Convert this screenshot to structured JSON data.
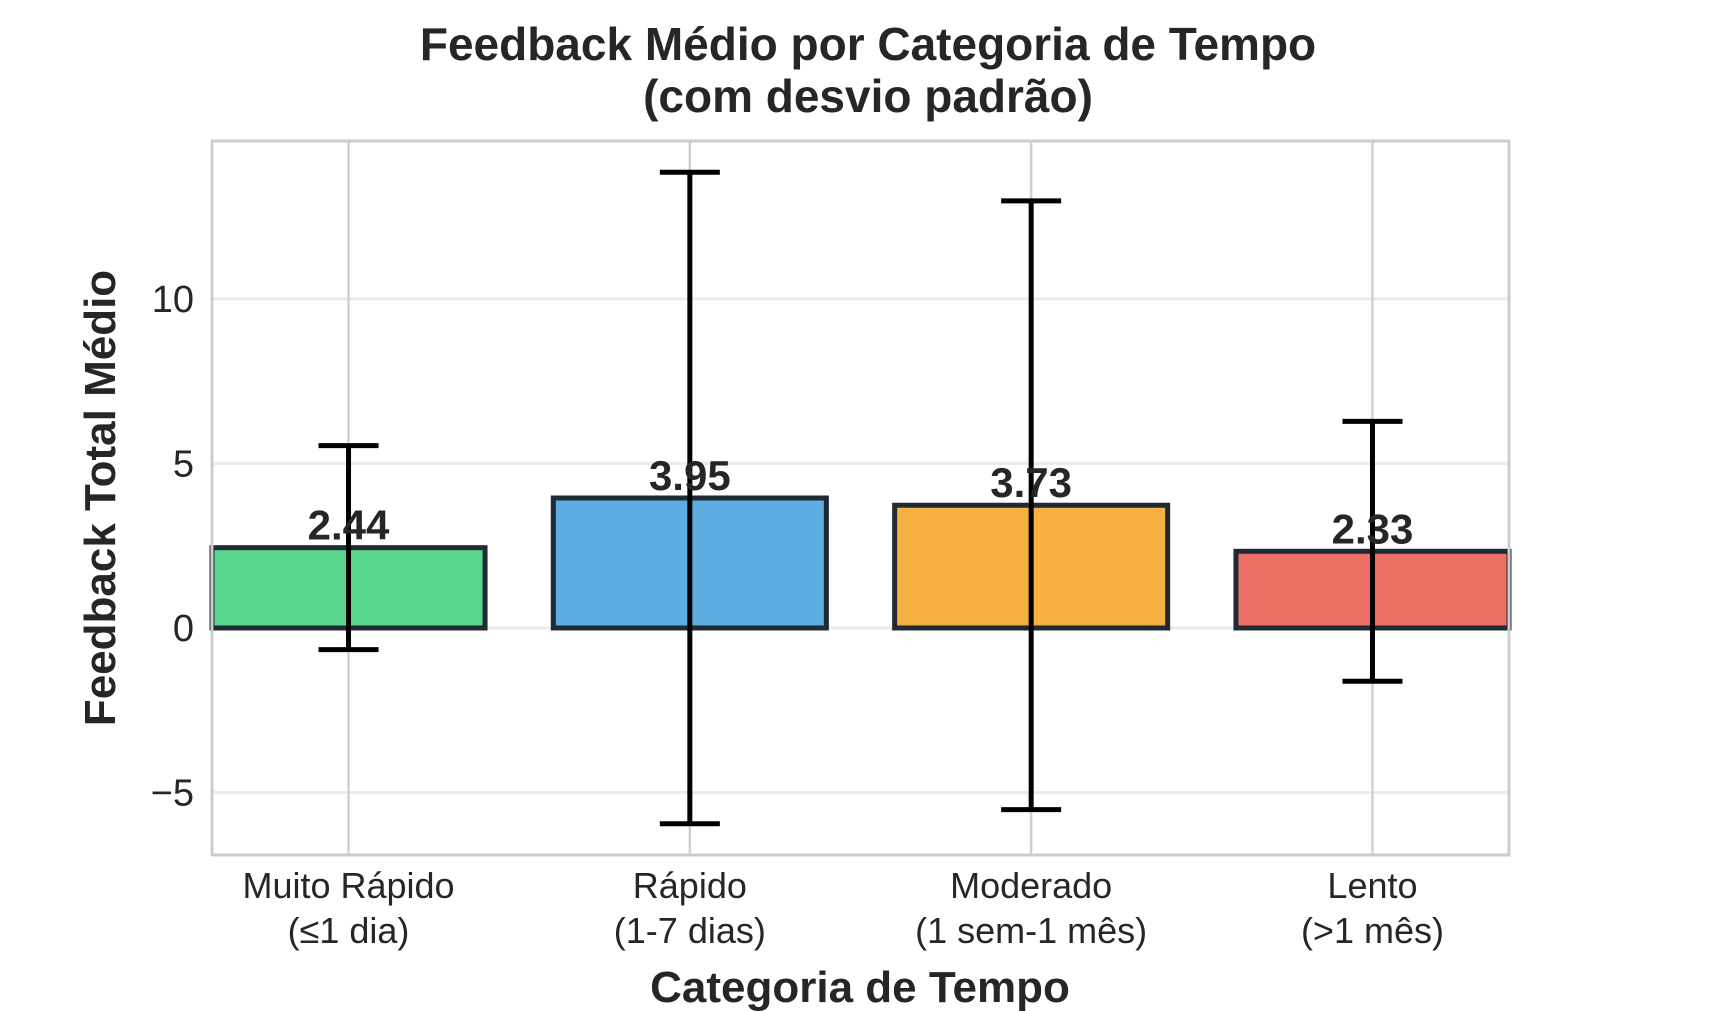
{
  "chart_data": {
    "type": "bar",
    "title": "Feedback Médio por Categoria de Tempo",
    "subtitle": "(com desvio padrão)",
    "xlabel": "Categoria de Tempo",
    "ylabel": "Feedback Total Médio",
    "categories": [
      [
        "Muito Rápido",
        "(≤1 dia)"
      ],
      [
        "Rápido",
        "(1-7 dias)"
      ],
      [
        "Moderado",
        "(1 sem-1 mês)"
      ],
      [
        "Lento",
        "(>1 mês)"
      ]
    ],
    "values": [
      2.44,
      3.95,
      3.73,
      2.33
    ],
    "value_labels": [
      "2.44",
      "3.95",
      "3.73",
      "2.33"
    ],
    "error_std": [
      3.1,
      9.9,
      9.25,
      3.95
    ],
    "colors": [
      "#2ecc71",
      "#3498db",
      "#f39c12",
      "#e74c3c"
    ],
    "ylim": [
      -6.9,
      14.8
    ],
    "yticks": [
      -5,
      0,
      5,
      10
    ],
    "ytick_labels": [
      "−5",
      "0",
      "5",
      "10"
    ],
    "grid": true,
    "legend": "none"
  }
}
